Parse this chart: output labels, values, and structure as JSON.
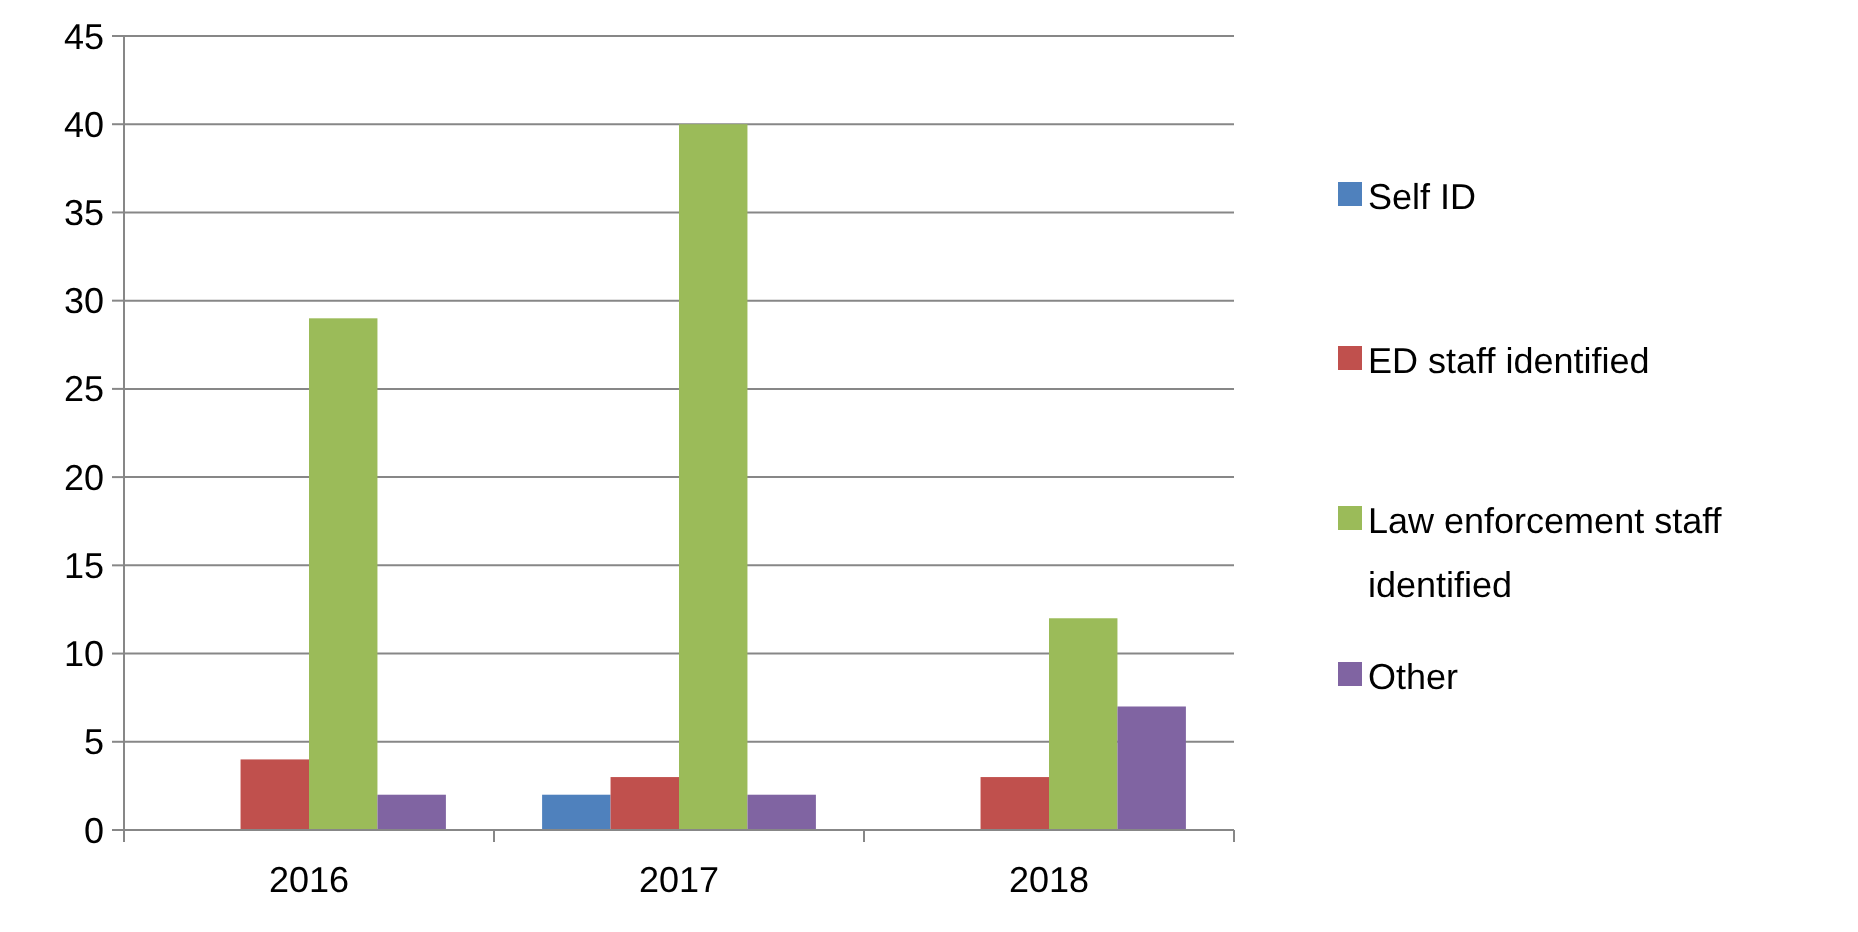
{
  "chart_data": {
    "type": "bar",
    "categories": [
      "2016",
      "2017",
      "2018"
    ],
    "series": [
      {
        "name": "Self ID",
        "color": "#4f81bd",
        "values": [
          0,
          2,
          0
        ]
      },
      {
        "name": "ED staff identified",
        "color": "#c0504d",
        "values": [
          4,
          3,
          3
        ]
      },
      {
        "name": "Law enforcement staff identified",
        "color": "#9bbb59",
        "values": [
          29,
          40,
          12
        ]
      },
      {
        "name": "Other",
        "color": "#8064a2",
        "values": [
          2,
          2,
          7
        ]
      }
    ],
    "ylim": [
      0,
      45
    ],
    "yticks": [
      0,
      5,
      10,
      15,
      20,
      25,
      30,
      35,
      40,
      45
    ],
    "grid": "y",
    "legend": "right"
  }
}
